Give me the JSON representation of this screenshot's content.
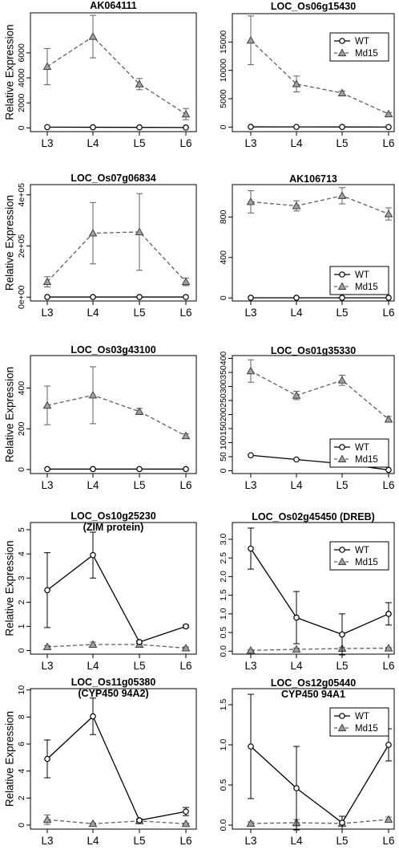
{
  "figure": {
    "ylabel_text": "Relative Expression"
  },
  "chart_data": [
    {
      "type": "line",
      "title": "AK064111",
      "subtitle": "",
      "x": [
        "L3",
        "L4",
        "L5",
        "L6"
      ],
      "ylim": [
        -300,
        9200
      ],
      "yticks": [
        0,
        2000,
        4000,
        6000
      ],
      "ytick_labels": [
        "0",
        "2000",
        "4000",
        "6000"
      ],
      "ylabel": "Relative Expression",
      "legend": null,
      "series": [
        {
          "name": "WT",
          "style": "solid",
          "marker": "circle",
          "values": [
            60,
            50,
            40,
            30
          ],
          "err": [
            0,
            0,
            0,
            0
          ]
        },
        {
          "name": "Md15",
          "style": "dashed",
          "marker": "triangle",
          "values": [
            4900,
            7300,
            3500,
            1100
          ],
          "err": [
            1450,
            1700,
            450,
            450
          ]
        }
      ]
    },
    {
      "type": "line",
      "title": "LOC_Os06g15430",
      "subtitle": "",
      "x": [
        "L3",
        "L4",
        "L5",
        "L6"
      ],
      "ylim": [
        -800,
        20000
      ],
      "yticks": [
        0,
        5000,
        10000,
        15000
      ],
      "ytick_labels": [
        "0",
        "5000",
        "10000",
        "15000"
      ],
      "ylabel": "",
      "legend": {
        "position": "top-right",
        "entries": [
          "WT",
          "Md15"
        ]
      },
      "series": [
        {
          "name": "WT",
          "style": "solid",
          "marker": "circle",
          "values": [
            40,
            30,
            20,
            10
          ],
          "err": [
            0,
            0,
            0,
            0
          ]
        },
        {
          "name": "Md15",
          "style": "dashed",
          "marker": "triangle",
          "values": [
            15300,
            7600,
            6000,
            2300
          ],
          "err": [
            4300,
            1400,
            350,
            250
          ]
        }
      ]
    },
    {
      "type": "line",
      "title": "LOC_Os07g06834",
      "subtitle": "",
      "x": [
        "L3",
        "L4",
        "L5",
        "L6"
      ],
      "ylim": [
        -15000,
        440000
      ],
      "yticks": [
        0,
        200000,
        400000
      ],
      "ytick_labels": [
        "0e+00",
        "2e+05",
        "4e+05"
      ],
      "ylabel": "Relative Expression",
      "legend": null,
      "series": [
        {
          "name": "WT",
          "style": "solid",
          "marker": "circle",
          "values": [
            500,
            500,
            500,
            500
          ],
          "err": [
            0,
            0,
            0,
            0
          ]
        },
        {
          "name": "Md15",
          "style": "dashed",
          "marker": "triangle",
          "values": [
            60000,
            250000,
            255000,
            60000
          ],
          "err": [
            20000,
            120000,
            150000,
            15000
          ]
        }
      ]
    },
    {
      "type": "line",
      "title": "AK106713",
      "subtitle": "",
      "x": [
        "L3",
        "L4",
        "L5",
        "L6"
      ],
      "ylim": [
        -30,
        1120
      ],
      "yticks": [
        0,
        400,
        800
      ],
      "ytick_labels": [
        "0",
        "400",
        "800"
      ],
      "ylabel": "",
      "legend": {
        "position": "bottom-right",
        "entries": [
          "WT",
          "Md15"
        ]
      },
      "series": [
        {
          "name": "WT",
          "style": "solid",
          "marker": "circle",
          "values": [
            2,
            2,
            2,
            2
          ],
          "err": [
            0,
            0,
            0,
            0
          ]
        },
        {
          "name": "Md15",
          "style": "dashed",
          "marker": "triangle",
          "values": [
            950,
            910,
            1010,
            830
          ],
          "err": [
            110,
            50,
            80,
            60
          ]
        }
      ]
    },
    {
      "type": "line",
      "title": "LOC_Os03g43100",
      "subtitle": "",
      "x": [
        "L3",
        "L4",
        "L5",
        "L6"
      ],
      "ylim": [
        -20,
        560
      ],
      "yticks": [
        0,
        200,
        400
      ],
      "ytick_labels": [
        "0",
        "200",
        "400"
      ],
      "ylabel": "Relative Expression",
      "legend": null,
      "series": [
        {
          "name": "WT",
          "style": "solid",
          "marker": "circle",
          "values": [
            2,
            2,
            2,
            2
          ],
          "err": [
            0,
            0,
            0,
            0
          ]
        },
        {
          "name": "Md15",
          "style": "dashed",
          "marker": "triangle",
          "values": [
            315,
            365,
            285,
            165
          ],
          "err": [
            95,
            140,
            15,
            10
          ]
        }
      ]
    },
    {
      "type": "line",
      "title": "LOC_Os01g35330",
      "subtitle": "",
      "x": [
        "L3",
        "L4",
        "L5",
        "L6"
      ],
      "ylim": [
        -10,
        410
      ],
      "yticks": [
        0,
        50,
        100,
        150,
        200,
        250,
        300,
        350,
        400
      ],
      "ytick_labels": [
        "0",
        "50",
        "100",
        "150",
        "200",
        "250",
        "300",
        "350",
        "400"
      ],
      "ylabel": "",
      "legend": {
        "position": "bottom-right",
        "entries": [
          "WT",
          "Md15"
        ]
      },
      "series": [
        {
          "name": "WT",
          "style": "solid",
          "marker": "circle",
          "values": [
            55,
            40,
            25,
            3
          ],
          "err": [
            0,
            0,
            0,
            0
          ]
        },
        {
          "name": "Md15",
          "style": "dashed",
          "marker": "triangle",
          "values": [
            355,
            268,
            322,
            183
          ],
          "err": [
            40,
            15,
            18,
            10
          ]
        }
      ]
    },
    {
      "type": "line",
      "title": "LOC_Os10g25230",
      "subtitle": "(ZIM protein)",
      "x": [
        "L3",
        "L4",
        "L5",
        "L6"
      ],
      "ylim": [
        -0.15,
        5.3
      ],
      "yticks": [
        0,
        1,
        2,
        3,
        4,
        5
      ],
      "ytick_labels": [
        "0",
        "1",
        "2",
        "3",
        "4",
        "5"
      ],
      "ylabel": "Relative Expression",
      "legend": null,
      "series": [
        {
          "name": "WT",
          "style": "solid",
          "marker": "circle",
          "values": [
            2.5,
            3.95,
            0.35,
            1.0
          ],
          "err": [
            1.55,
            0.95,
            0.05,
            0.05
          ]
        },
        {
          "name": "Md15",
          "style": "dashed",
          "marker": "triangle",
          "values": [
            0.15,
            0.25,
            0.25,
            0.1
          ],
          "err": [
            0.05,
            0.1,
            0.05,
            0.05
          ]
        }
      ]
    },
    {
      "type": "line",
      "title": "LOC_Os02g45450 (DREB)",
      "subtitle": "",
      "x": [
        "L3",
        "L4",
        "L5",
        "L6"
      ],
      "ylim": [
        -0.08,
        3.45
      ],
      "yticks": [
        0,
        0.5,
        1,
        1.5,
        2,
        2.5,
        3
      ],
      "ytick_labels": [
        "0.0",
        "0.5",
        "1.0",
        "1.5",
        "2.0",
        "2.5",
        "3.0"
      ],
      "ylabel": "",
      "legend": {
        "position": "top-right",
        "entries": [
          "WT",
          "Md15"
        ]
      },
      "series": [
        {
          "name": "WT",
          "style": "solid",
          "marker": "circle",
          "values": [
            2.75,
            0.9,
            0.45,
            1.0
          ],
          "err": [
            0.55,
            0.7,
            0.55,
            0.3
          ]
        },
        {
          "name": "Md15",
          "style": "dashed",
          "marker": "triangle",
          "values": [
            0.02,
            0.05,
            0.07,
            0.08
          ],
          "err": [
            0.02,
            0.03,
            0.03,
            0.02
          ]
        }
      ]
    },
    {
      "type": "line",
      "title": "LOC_Os11g05380",
      "subtitle": "(CYP450 94A2)",
      "x": [
        "L3",
        "L4",
        "L5",
        "L6"
      ],
      "ylim": [
        -0.3,
        10.1
      ],
      "yticks": [
        0,
        2,
        4,
        6,
        8,
        10
      ],
      "ytick_labels": [
        "0",
        "2",
        "4",
        "6",
        "8",
        "10"
      ],
      "ylabel": "Relative Expression",
      "legend": null,
      "series": [
        {
          "name": "WT",
          "style": "solid",
          "marker": "circle",
          "values": [
            4.9,
            8.05,
            0.35,
            1.0
          ],
          "err": [
            1.4,
            1.35,
            0.1,
            0.3
          ]
        },
        {
          "name": "Md15",
          "style": "dashed",
          "marker": "triangle",
          "values": [
            0.4,
            0.1,
            0.3,
            0.1
          ],
          "err": [
            0.35,
            0.05,
            0.05,
            0.05
          ]
        }
      ]
    },
    {
      "type": "line",
      "title": "LOC_Os12g05440",
      "subtitle": "CYP450 94A1",
      "x": [
        "L3",
        "L4",
        "L5",
        "L6"
      ],
      "ylim": [
        -0.05,
        1.7
      ],
      "yticks": [
        0,
        0.5,
        1,
        1.5
      ],
      "ytick_labels": [
        "0.0",
        "0.5",
        "1.0",
        "1.5"
      ],
      "ylabel": "",
      "legend": {
        "position": "top-right",
        "entries": [
          "WT",
          "Md15"
        ]
      },
      "series": [
        {
          "name": "WT",
          "style": "solid",
          "marker": "circle",
          "values": [
            0.98,
            0.46,
            0.03,
            1.0
          ],
          "err": [
            0.65,
            0.52,
            0.08,
            0.2
          ]
        },
        {
          "name": "Md15",
          "style": "dashed",
          "marker": "triangle",
          "values": [
            0.02,
            0.03,
            0.02,
            0.07
          ],
          "err": [
            0.02,
            0.04,
            0.02,
            0.03
          ]
        }
      ]
    }
  ]
}
